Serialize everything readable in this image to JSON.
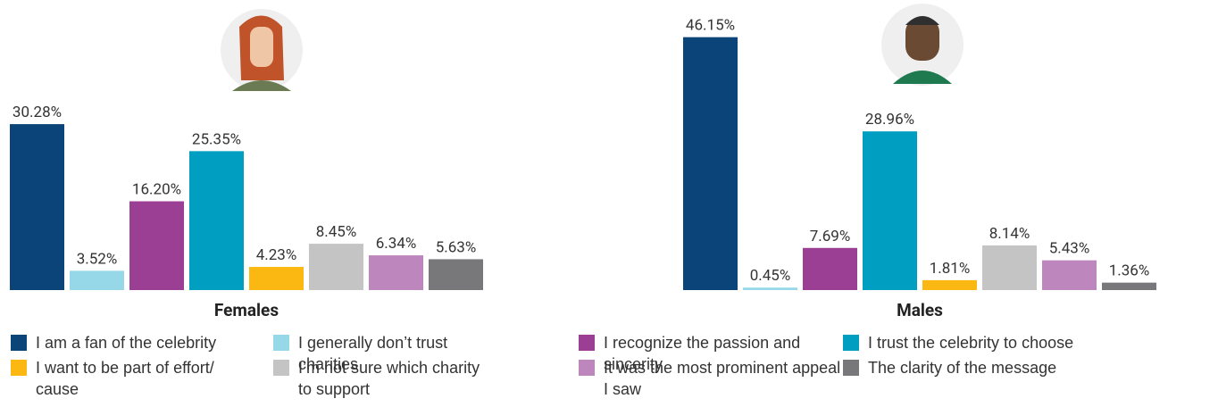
{
  "chart_data": [
    {
      "type": "bar",
      "title": "Females",
      "values": [
        30.28,
        3.52,
        16.2,
        25.35,
        4.23,
        8.45,
        6.34,
        5.63
      ],
      "value_labels": [
        "30.28%",
        "3.52%",
        "16.20%",
        "25.35%",
        "4.23%",
        "8.45%",
        "6.34%",
        "5.63%"
      ],
      "ylim": [
        0,
        50
      ]
    },
    {
      "type": "bar",
      "title": "Males",
      "values": [
        46.15,
        0.45,
        7.69,
        28.96,
        1.81,
        8.14,
        5.43,
        1.36
      ],
      "value_labels": [
        "46.15%",
        "0.45%",
        "7.69%",
        "28.96%",
        "1.81%",
        "8.14%",
        "5.43%",
        "1.36%"
      ],
      "ylim": [
        0,
        50
      ]
    }
  ],
  "legend": [
    {
      "name": "I am a fan of the celebrity",
      "color": "#0b4478"
    },
    {
      "name": "I generally don’t trust charities",
      "color": "#96d8e8"
    },
    {
      "name": "I recognize the passion and sincerity",
      "color": "#9b3f95"
    },
    {
      "name": "I trust the celebrity to choose",
      "color": "#009fc2"
    },
    {
      "name": "I want to be part of effort/ cause",
      "color": "#fbb812"
    },
    {
      "name": "I’m not sure which charity to support",
      "color": "#c4c4c4"
    },
    {
      "name": "It was the most prominent appeal I saw",
      "color": "#bd86bd"
    },
    {
      "name": "The clarity of the message",
      "color": "#78787a"
    }
  ]
}
